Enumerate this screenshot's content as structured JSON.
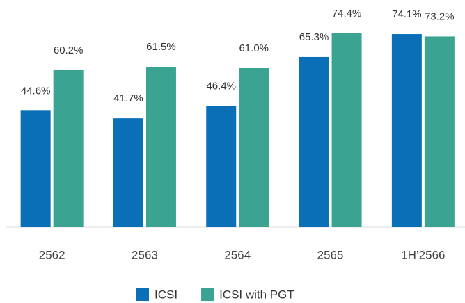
{
  "chart_data": {
    "type": "bar",
    "categories": [
      "2562",
      "2563",
      "2564",
      "2565",
      "1H’2566"
    ],
    "series": [
      {
        "name": "ICSI",
        "color": "#0b6fb8",
        "values": [
          44.6,
          41.7,
          46.4,
          65.3,
          74.1
        ],
        "value_labels": [
          "44.6%",
          "41.7%",
          "46.4%",
          "65.3%",
          "74.1%"
        ]
      },
      {
        "name": "ICSI with PGT",
        "color": "#3aa391",
        "values": [
          60.2,
          61.5,
          61.0,
          74.4,
          73.2
        ],
        "value_labels": [
          "60.2%",
          "61.5%",
          "61.0%",
          "74.4%",
          "73.2%"
        ]
      }
    ],
    "ylim": [
      0,
      80
    ]
  }
}
